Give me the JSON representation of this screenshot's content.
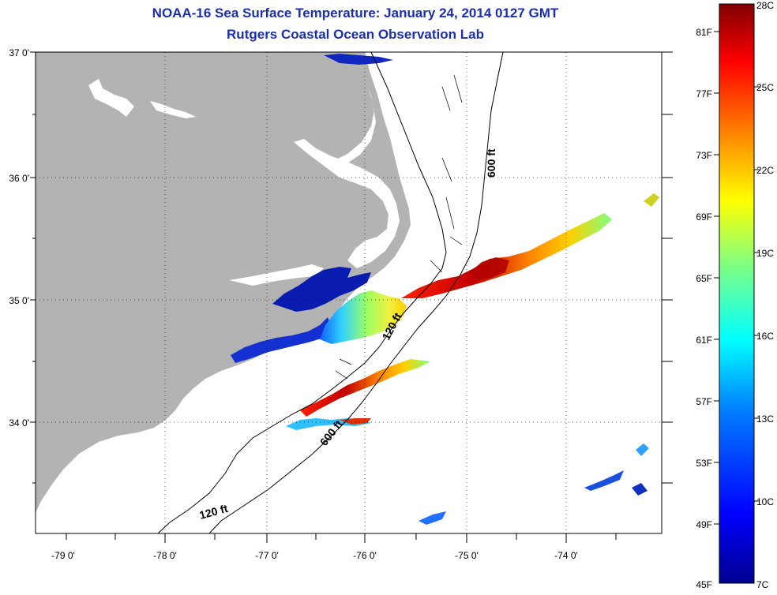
{
  "title": "NOAA-16 Sea Surface Temperature:  January 24, 2014 0127 GMT",
  "subtitle": "Rutgers Coastal Ocean Observation Lab",
  "map": {
    "lat_ticks": [
      "37 0'",
      "36 0'",
      "35 0'",
      "34 0'"
    ],
    "lon_ticks": [
      "-79 0'",
      "-78 0'",
      "-77 0'",
      "-76 0'",
      "-75 0'",
      "-74 0'"
    ],
    "contour_labels": {
      "c600_north": "600 ft",
      "c120_mid": "120 ft",
      "c600_south": "600 ft",
      "c120_south": "120 ft"
    },
    "land_color": "#b3b3b3",
    "grid": true
  },
  "colorbar": {
    "celsius": [
      "28C",
      "25C",
      "22C",
      "19C",
      "16C",
      "13C",
      "10C",
      "7C"
    ],
    "fahrenheit": [
      "81F",
      "77F",
      "73F",
      "69F",
      "65F",
      "61F",
      "57F",
      "53F",
      "49F",
      "45F"
    ],
    "min_c": 7,
    "max_c": 28,
    "colors": [
      "#00008f",
      "#0000ff",
      "#0080ff",
      "#00ffff",
      "#80ff80",
      "#ffff00",
      "#ff8000",
      "#ff0000",
      "#800000"
    ]
  }
}
